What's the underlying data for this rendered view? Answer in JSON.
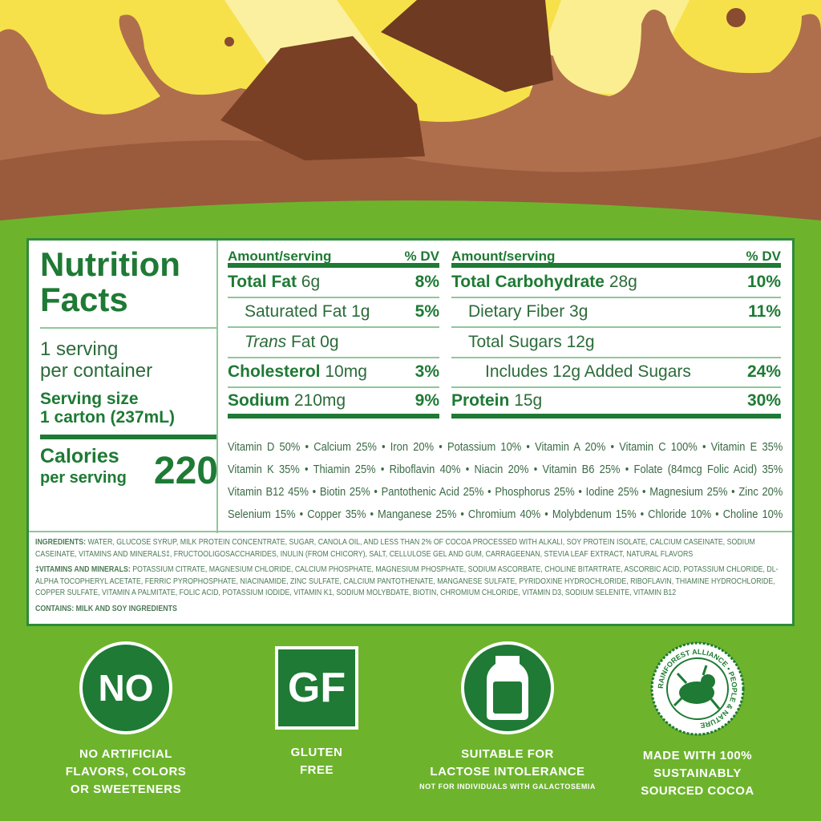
{
  "label": {
    "title_line1": "Nutrition",
    "title_line2": "Facts",
    "servings_line1": "1 serving",
    "servings_line2": "per container",
    "serving_size_label": "Serving size",
    "serving_size_value": "1 carton (237mL)",
    "calories_line1": "Calories",
    "calories_line2": "per serving",
    "calories": "220",
    "left_table": {
      "header_amount": "Amount/serving",
      "header_dv": "% DV",
      "rows": [
        {
          "name": "Total Fat",
          "amount": "6g",
          "dv": "8%",
          "bold": true
        },
        {
          "name": "Saturated Fat",
          "amount": "1g",
          "dv": "5%",
          "indent": 1
        },
        {
          "name": "Trans",
          "name_suffix": "Fat",
          "amount": "0g",
          "dv": "",
          "indent": 1
        },
        {
          "name": "Cholesterol",
          "amount": "10mg",
          "dv": "3%",
          "bold": true
        },
        {
          "name": "Sodium",
          "amount": "210mg",
          "dv": "9%",
          "bold": true
        }
      ]
    },
    "right_table": {
      "header_amount": "Amount/serving",
      "header_dv": "% DV",
      "rows": [
        {
          "name": "Total Carbohydrate",
          "amount": "28g",
          "dv": "10%",
          "bold": true
        },
        {
          "name": "Dietary Fiber",
          "amount": "3g",
          "dv": "11%",
          "indent": 1
        },
        {
          "name": "Total Sugars",
          "amount": "12g",
          "dv": "",
          "indent": 1
        },
        {
          "name": "Includes 12g Added Sugars",
          "amount": "",
          "dv": "24%",
          "indent": 2
        },
        {
          "name": "Protein",
          "amount": "15g",
          "dv": "30%",
          "bold": true
        }
      ]
    },
    "vitamins": [
      "Vitamin D 50% • Calcium 25% • Iron 20% • Potassium 10% • Vitamin A 20% • Vitamin C 100% • Vitamin E 35%",
      "Vitamin K 35% • Thiamin 25% • Riboflavin 40% • Niacin 20% • Vitamin B6 25% • Folate (84mcg Folic Acid) 35%",
      "Vitamin B12 45% • Biotin 25% • Pantothenic Acid 25% • Phosphorus 25% • Iodine 25% • Magnesium 25% • Zinc 20%",
      "Selenium 15% • Copper 35% • Manganese 25% • Chromium 40% • Molybdenum 15% • Chloride 10% • Choline 10%"
    ],
    "ingredients_label": "INGREDIENTS:",
    "ingredients": "WATER, GLUCOSE SYRUP, MILK PROTEIN CONCENTRATE, SUGAR, CANOLA OIL, AND LESS THAN 2% OF COCOA PROCESSED WITH ALKALI, SOY PROTEIN ISOLATE, CALCIUM CASEINATE, SODIUM CASEINATE, VITAMINS AND MINERALS‡, FRUCTOOLIGOSACCHARIDES, INULIN (FROM CHICORY), SALT, CELLULOSE GEL AND GUM, CARRAGEENAN, STEVIA LEAF EXTRACT, NATURAL FLAVORS",
    "vm_label": "‡VITAMINS AND MINERALS:",
    "vm": "POTASSIUM CITRATE, MAGNESIUM CHLORIDE, CALCIUM PHOSPHATE, MAGNESIUM PHOSPHATE, SODIUM ASCORBATE, CHOLINE BITARTRATE, ASCORBIC ACID, POTASSIUM CHLORIDE, DL-ALPHA TOCOPHERYL ACETATE, FERRIC PYROPHOSPHATE, NIACINAMIDE, ZINC SULFATE, CALCIUM PANTOTHENATE, MANGANESE SULFATE, PYRIDOXINE HYDROCHLORIDE, RIBOFLAVIN, THIAMINE HYDROCHLORIDE, COPPER SULFATE, VITAMIN A PALMITATE, FOLIC ACID, POTASSIUM IODIDE, VITAMIN K1, SODIUM MOLYBDATE, BIOTIN, CHROMIUM CHLORIDE, VITAMIN D3, SODIUM SELENITE, VITAMIN B12",
    "contains": "CONTAINS: MILK AND SOY INGREDIENTS"
  },
  "badges": [
    {
      "icon": "no-icon",
      "icon_text": "NO",
      "lines": [
        "NO ARTIFICIAL",
        "FLAVORS, COLORS",
        "OR SWEETENERS"
      ]
    },
    {
      "icon": "gluten-free-icon",
      "icon_text": "GF",
      "lines": [
        "GLUTEN",
        "FREE"
      ]
    },
    {
      "icon": "milk-bottle-icon",
      "lines": [
        "SUITABLE FOR",
        "LACTOSE INTOLERANCE"
      ],
      "note": "NOT FOR INDIVIDUALS WITH GALACTOSEMIA"
    },
    {
      "icon": "rainforest-alliance-seal",
      "seal_text": "RAINFOREST ALLIANCE • PEOPLE & NATURE",
      "lines": [
        "MADE WITH 100%",
        "SUSTAINABLY",
        "SOURCED COCOA"
      ]
    }
  ],
  "colors": {
    "background_green": "#6db42c",
    "label_green": "#1e7a34",
    "chocolate": "#a8694a",
    "yellow": "#f7e14a"
  }
}
